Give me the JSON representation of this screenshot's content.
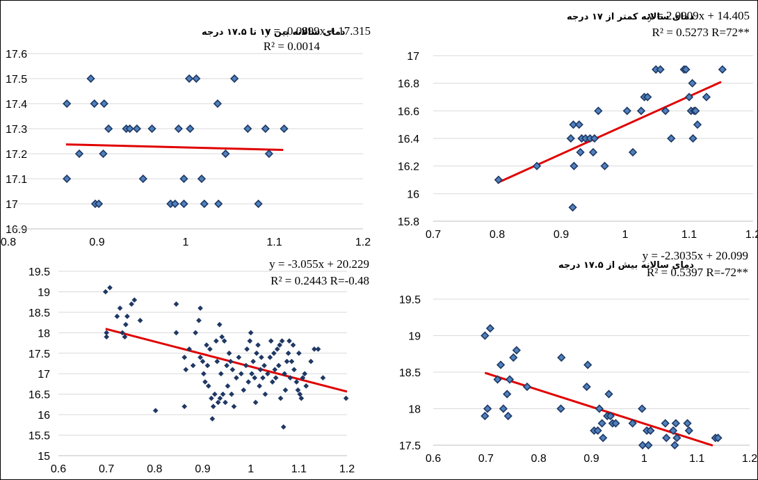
{
  "colors": {
    "marker_fill": "#4f81bd",
    "marker_stroke": "#1f3864",
    "trend": "#e00000",
    "grid": "#d9d9d9",
    "border": "#000000"
  },
  "chart_data": [
    {
      "id": "top-left",
      "type": "scatter",
      "title": "دمای سالانه بین ۱۷ تا ۱۷.۵ درجه",
      "equation": "y = -0.0899x + 17.315",
      "r2_label": "R² = 0.0014",
      "xlim": [
        0.8,
        1.2
      ],
      "ylim": [
        16.9,
        17.6
      ],
      "x_ticks": [
        "0.8",
        "0.9",
        "1",
        "1.1",
        "1.2"
      ],
      "y_ticks": [
        "16.9",
        "17",
        "17.1",
        "17.2",
        "17.3",
        "17.4",
        "17.5",
        "17.6"
      ],
      "marker": "diamond-outline",
      "trend": {
        "slope": -0.0899,
        "intercept": 17.315,
        "x_range": [
          0.865,
          1.11
        ]
      },
      "points": [
        [
          0.866,
          17.4
        ],
        [
          0.866,
          17.1
        ],
        [
          0.893,
          17.5
        ],
        [
          0.897,
          17.4
        ],
        [
          0.908,
          17.4
        ],
        [
          0.88,
          17.2
        ],
        [
          0.907,
          17.2
        ],
        [
          0.913,
          17.3
        ],
        [
          0.933,
          17.3
        ],
        [
          0.937,
          17.3
        ],
        [
          0.945,
          17.3
        ],
        [
          0.962,
          17.3
        ],
        [
          0.952,
          17.1
        ],
        [
          0.898,
          17.0
        ],
        [
          0.902,
          17.0
        ],
        [
          0.983,
          17.0
        ],
        [
          0.988,
          17.0
        ],
        [
          0.998,
          17.0
        ],
        [
          0.992,
          17.3
        ],
        [
          0.998,
          17.1
        ],
        [
          1.004,
          17.5
        ],
        [
          1.012,
          17.5
        ],
        [
          1.005,
          17.3
        ],
        [
          1.018,
          17.1
        ],
        [
          1.021,
          17.0
        ],
        [
          1.037,
          17.0
        ],
        [
          1.036,
          17.4
        ],
        [
          1.045,
          17.2
        ],
        [
          1.055,
          17.5
        ],
        [
          1.07,
          17.3
        ],
        [
          1.082,
          17.0
        ],
        [
          1.09,
          17.3
        ],
        [
          1.094,
          17.2
        ],
        [
          1.111,
          17.3
        ]
      ]
    },
    {
      "id": "top-right",
      "type": "scatter",
      "title": "دمای سالانه کمتر از ۱۷ درجه",
      "equation": "y = 2.0909x + 14.405",
      "r2_label": "R² = 0.5273   R=72**",
      "xlim": [
        0.7,
        1.2
      ],
      "ylim": [
        15.8,
        17.0
      ],
      "x_ticks": [
        "0.7",
        "0.8",
        "0.9",
        "1",
        "1.1",
        "1.2"
      ],
      "y_ticks": [
        "15.8",
        "16",
        "16.2",
        "16.4",
        "16.6",
        "16.8",
        "17"
      ],
      "marker": "diamond-outline",
      "trend": {
        "slope": 2.0909,
        "intercept": 14.405,
        "x_range": [
          0.8,
          1.15
        ]
      },
      "points": [
        [
          0.802,
          16.1
        ],
        [
          0.862,
          16.2
        ],
        [
          0.915,
          16.4
        ],
        [
          0.919,
          16.5
        ],
        [
          0.928,
          16.5
        ],
        [
          0.92,
          16.2
        ],
        [
          0.93,
          16.3
        ],
        [
          0.932,
          16.4
        ],
        [
          0.938,
          16.4
        ],
        [
          0.945,
          16.4
        ],
        [
          0.95,
          16.3
        ],
        [
          0.952,
          16.4
        ],
        [
          0.958,
          16.6
        ],
        [
          0.968,
          16.2
        ],
        [
          0.918,
          15.9
        ],
        [
          1.003,
          16.6
        ],
        [
          1.012,
          16.3
        ],
        [
          1.025,
          16.6
        ],
        [
          1.03,
          16.7
        ],
        [
          1.035,
          16.7
        ],
        [
          1.048,
          16.9
        ],
        [
          1.055,
          16.9
        ],
        [
          1.063,
          16.6
        ],
        [
          1.072,
          16.4
        ],
        [
          1.092,
          16.9
        ],
        [
          1.095,
          16.9
        ],
        [
          1.1,
          16.7
        ],
        [
          1.103,
          16.6
        ],
        [
          1.105,
          16.8
        ],
        [
          1.106,
          16.4
        ],
        [
          1.108,
          16.6
        ],
        [
          1.11,
          16.6
        ],
        [
          1.113,
          16.5
        ],
        [
          1.127,
          16.7
        ],
        [
          1.152,
          16.9
        ]
      ]
    },
    {
      "id": "bottom-left",
      "type": "scatter",
      "title": "",
      "equation": "y = -3.055x + 20.229",
      "r2_label": "R² = 0.2443  R=-0.48",
      "xlim": [
        0.6,
        1.2
      ],
      "ylim": [
        15.0,
        19.5
      ],
      "x_ticks": [
        "0.6",
        "0.7",
        "0.8",
        "0.9",
        "1",
        "1.1",
        "1.2"
      ],
      "y_ticks": [
        "15",
        "15.5",
        "16",
        "16.5",
        "17",
        "17.5",
        "18",
        "18.5",
        "19",
        "19.5"
      ],
      "marker": "diamond-solid",
      "trend": {
        "slope": -3.055,
        "intercept": 20.229,
        "x_range": [
          0.698,
          1.2
        ]
      },
      "points": [
        [
          0.698,
          19.0
        ],
        [
          0.707,
          19.1
        ],
        [
          0.7,
          17.9
        ],
        [
          0.7,
          18.0
        ],
        [
          0.722,
          18.4
        ],
        [
          0.728,
          18.6
        ],
        [
          0.733,
          18.0
        ],
        [
          0.738,
          17.9
        ],
        [
          0.74,
          18.2
        ],
        [
          0.743,
          18.4
        ],
        [
          0.752,
          18.7
        ],
        [
          0.758,
          18.8
        ],
        [
          0.77,
          18.3
        ],
        [
          0.802,
          16.1
        ],
        [
          0.845,
          18.7
        ],
        [
          0.845,
          18.0
        ],
        [
          0.862,
          17.4
        ],
        [
          0.862,
          16.2
        ],
        [
          0.865,
          17.1
        ],
        [
          0.872,
          17.6
        ],
        [
          0.88,
          17.2
        ],
        [
          0.885,
          18.0
        ],
        [
          0.892,
          18.3
        ],
        [
          0.895,
          18.6
        ],
        [
          0.895,
          17.4
        ],
        [
          0.9,
          17.3
        ],
        [
          0.902,
          17.0
        ],
        [
          0.905,
          16.8
        ],
        [
          0.908,
          17.7
        ],
        [
          0.91,
          17.2
        ],
        [
          0.912,
          16.7
        ],
        [
          0.915,
          17.6
        ],
        [
          0.918,
          16.4
        ],
        [
          0.92,
          15.9
        ],
        [
          0.922,
          16.2
        ],
        [
          0.925,
          16.5
        ],
        [
          0.928,
          17.8
        ],
        [
          0.93,
          17.3
        ],
        [
          0.932,
          16.3
        ],
        [
          0.935,
          18.2
        ],
        [
          0.936,
          16.4
        ],
        [
          0.938,
          17.0
        ],
        [
          0.94,
          17.9
        ],
        [
          0.942,
          16.5
        ],
        [
          0.945,
          17.8
        ],
        [
          0.947,
          16.3
        ],
        [
          0.95,
          17.2
        ],
        [
          0.952,
          16.7
        ],
        [
          0.955,
          17.5
        ],
        [
          0.958,
          17.3
        ],
        [
          0.96,
          16.5
        ],
        [
          0.962,
          17.1
        ],
        [
          0.965,
          16.2
        ],
        [
          0.97,
          16.9
        ],
        [
          0.975,
          17.4
        ],
        [
          0.98,
          17.0
        ],
        [
          0.985,
          16.6
        ],
        [
          0.99,
          17.2
        ],
        [
          0.992,
          17.6
        ],
        [
          0.995,
          16.8
        ],
        [
          0.998,
          17.8
        ],
        [
          1.0,
          18.0
        ],
        [
          1.002,
          17.0
        ],
        [
          1.005,
          17.3
        ],
        [
          1.008,
          16.9
        ],
        [
          1.01,
          16.3
        ],
        [
          1.012,
          17.5
        ],
        [
          1.015,
          17.7
        ],
        [
          1.018,
          16.7
        ],
        [
          1.02,
          17.1
        ],
        [
          1.022,
          17.4
        ],
        [
          1.025,
          16.9
        ],
        [
          1.028,
          17.2
        ],
        [
          1.03,
          16.5
        ],
        [
          1.035,
          17.0
        ],
        [
          1.04,
          17.4
        ],
        [
          1.042,
          17.8
        ],
        [
          1.045,
          16.8
        ],
        [
          1.048,
          17.5
        ],
        [
          1.05,
          17.1
        ],
        [
          1.052,
          16.9
        ],
        [
          1.055,
          17.6
        ],
        [
          1.058,
          17.2
        ],
        [
          1.06,
          17.7
        ],
        [
          1.062,
          16.4
        ],
        [
          1.065,
          17.8
        ],
        [
          1.068,
          15.7
        ],
        [
          1.07,
          17.0
        ],
        [
          1.072,
          16.6
        ],
        [
          1.075,
          17.3
        ],
        [
          1.078,
          17.5
        ],
        [
          1.08,
          17.8
        ],
        [
          1.082,
          16.9
        ],
        [
          1.085,
          17.3
        ],
        [
          1.088,
          17.7
        ],
        [
          1.09,
          17.1
        ],
        [
          1.095,
          16.8
        ],
        [
          1.098,
          16.6
        ],
        [
          1.1,
          17.5
        ],
        [
          1.102,
          16.5
        ],
        [
          1.105,
          16.4
        ],
        [
          1.108,
          16.9
        ],
        [
          1.112,
          17.0
        ],
        [
          1.115,
          16.7
        ],
        [
          1.125,
          17.3
        ],
        [
          1.132,
          17.6
        ],
        [
          1.14,
          17.6
        ],
        [
          1.15,
          16.9
        ],
        [
          1.198,
          16.4
        ]
      ]
    },
    {
      "id": "bottom-right",
      "type": "scatter",
      "title": "دمای سالانه بیش از ۱۷.۵ درجه",
      "equation": "y = -2.3035x + 20.099",
      "r2_label": "R² = 0.5397   R=-72**",
      "xlim": [
        0.6,
        1.2
      ],
      "ylim": [
        17.5,
        19.5
      ],
      "x_ticks": [
        "0.6",
        "0.7",
        "0.8",
        "0.9",
        "1",
        "1.1",
        "1.2"
      ],
      "y_ticks": [
        "17.5",
        "18",
        "18.5",
        "19",
        "19.5"
      ],
      "marker": "diamond-outline",
      "trend": {
        "slope": -2.3035,
        "intercept": 20.099,
        "x_range": [
          0.698,
          1.13
        ]
      },
      "points": [
        [
          0.698,
          19.0
        ],
        [
          0.708,
          19.1
        ],
        [
          0.698,
          17.9
        ],
        [
          0.703,
          18.0
        ],
        [
          0.722,
          18.4
        ],
        [
          0.728,
          18.6
        ],
        [
          0.733,
          18.0
        ],
        [
          0.74,
          18.2
        ],
        [
          0.745,
          18.4
        ],
        [
          0.742,
          17.9
        ],
        [
          0.752,
          18.7
        ],
        [
          0.758,
          18.8
        ],
        [
          0.778,
          18.3
        ],
        [
          0.843,
          18.7
        ],
        [
          0.842,
          18.0
        ],
        [
          0.893,
          18.6
        ],
        [
          0.891,
          18.3
        ],
        [
          0.905,
          17.7
        ],
        [
          0.912,
          17.7
        ],
        [
          0.915,
          18.0
        ],
        [
          0.92,
          17.8
        ],
        [
          0.922,
          17.6
        ],
        [
          0.93,
          17.9
        ],
        [
          0.933,
          18.2
        ],
        [
          0.936,
          17.9
        ],
        [
          0.94,
          17.8
        ],
        [
          0.946,
          17.8
        ],
        [
          0.978,
          17.8
        ],
        [
          0.996,
          18.0
        ],
        [
          0.997,
          17.5
        ],
        [
          1.005,
          17.7
        ],
        [
          1.008,
          17.5
        ],
        [
          1.012,
          17.7
        ],
        [
          1.04,
          17.8
        ],
        [
          1.042,
          17.6
        ],
        [
          1.055,
          17.7
        ],
        [
          1.058,
          17.5
        ],
        [
          1.06,
          17.8
        ],
        [
          1.062,
          17.6
        ],
        [
          1.082,
          17.8
        ],
        [
          1.085,
          17.7
        ],
        [
          1.135,
          17.6
        ],
        [
          1.14,
          17.6
        ]
      ]
    }
  ]
}
